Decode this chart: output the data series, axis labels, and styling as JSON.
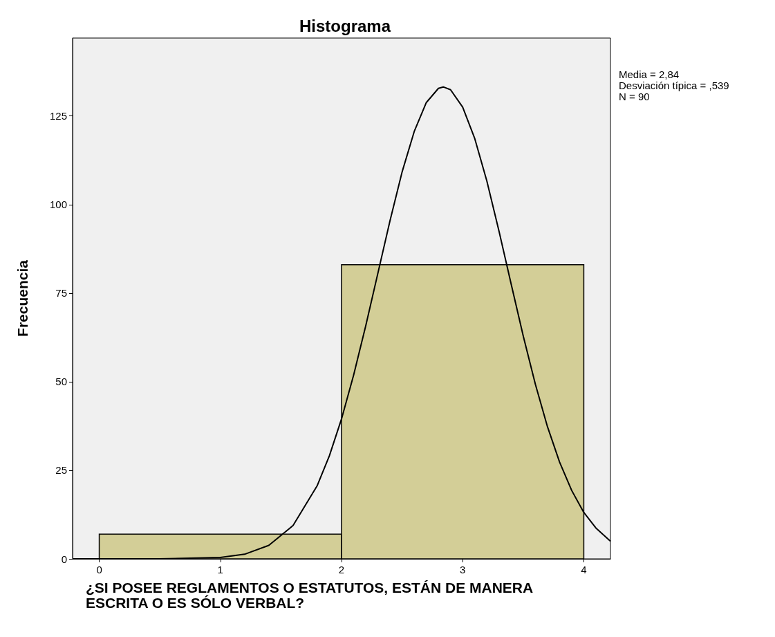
{
  "chart_data": {
    "type": "histogram",
    "title": "Histograma",
    "xlabel": "¿SI POSEE REGLAMENTOS O ESTATUTOS, ESTÁN DE MANERA ESCRITA O ES SÓLO VERBAL?",
    "ylabel": "Frecuencia",
    "bins": [
      0,
      2,
      4
    ],
    "values": [
      7,
      83
    ],
    "color": "#d3ce97",
    "series": [
      {
        "type": "line",
        "color": "#000000",
        "x": [
          -0.22,
          0,
          0.5,
          1.0,
          1.2,
          1.4,
          1.6,
          1.8,
          1.9,
          2.0,
          2.1,
          2.2,
          2.3,
          2.4,
          2.5,
          2.6,
          2.7,
          2.8,
          2.84,
          2.9,
          3.0,
          3.1,
          3.2,
          3.3,
          3.4,
          3.5,
          3.6,
          3.7,
          3.8,
          3.9,
          4.0,
          4.1,
          4.22
        ],
        "values": [
          0,
          0,
          0,
          0.4,
          1.3,
          3.8,
          9.4,
          20.7,
          29.1,
          39.5,
          51.9,
          65.8,
          80.6,
          95.4,
          109.2,
          120.6,
          128.8,
          132.8,
          133.2,
          132.4,
          127.5,
          118.6,
          106.6,
          92.5,
          77.6,
          62.9,
          49.3,
          37.3,
          27.3,
          19.3,
          13.1,
          8.7,
          5.0
        ]
      }
    ],
    "xlim": [
      -0.22,
      4.22
    ],
    "xticks": [
      0,
      1,
      2,
      3,
      4
    ],
    "ylim": [
      0,
      147
    ],
    "yticks": [
      0,
      25,
      50,
      75,
      100,
      125
    ],
    "grid": false,
    "marker": "none",
    "line_style": "solid",
    "annotations": [
      "Media = 2,84",
      "Desviación típica = ,539",
      "N = 90"
    ]
  }
}
